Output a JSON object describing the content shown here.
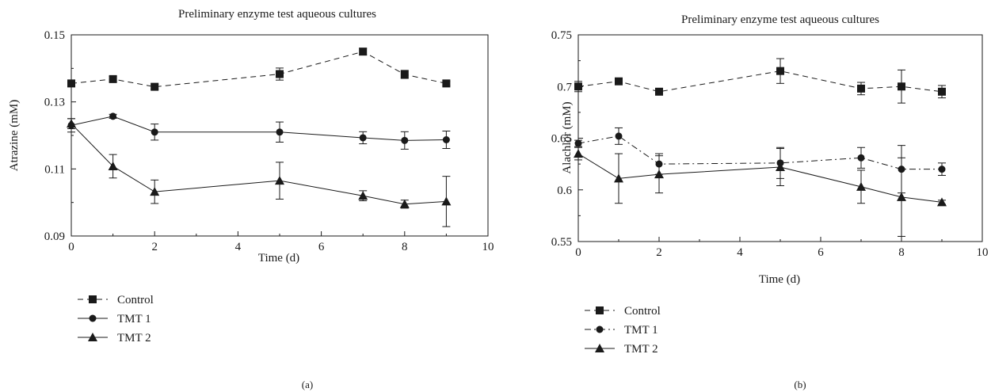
{
  "charts": [
    {
      "panel_label": "(a)",
      "chart_data": {
        "type": "line",
        "title": "Preliminary enzyme test aqueous cultures",
        "xlabel": "Time (d)",
        "ylabel": "Atrazine (mM)",
        "xlim": [
          0,
          10
        ],
        "ylim": [
          0.09,
          0.15
        ],
        "xticks": [
          0,
          2,
          4,
          6,
          8,
          10
        ],
        "yticks": [
          0.09,
          0.11,
          0.13,
          0.15
        ],
        "x_tick_labels": [
          "0",
          "2",
          "4",
          "6",
          "8",
          "10"
        ],
        "y_tick_labels": [
          "0.09",
          "0.11",
          "0.13",
          "0.15"
        ],
        "grid": false,
        "legend_placement": "below",
        "series": [
          {
            "name": "Control",
            "marker": "square",
            "dash": "dashed",
            "x": [
              0,
              1,
              2,
              5,
              7,
              8,
              9
            ],
            "y": [
              0.1355,
              0.1368,
              0.1345,
              0.1383,
              0.145,
              0.1382,
              0.1355
            ],
            "err": [
              0.0008,
              0.0008,
              0.0007,
              0.0018,
              0.001,
              0.0012,
              0.0006
            ]
          },
          {
            "name": "TMT 1",
            "marker": "circle",
            "dash": "solid",
            "x": [
              0,
              1,
              2,
              5,
              7,
              8,
              9
            ],
            "y": [
              0.123,
              0.1257,
              0.121,
              0.121,
              0.1193,
              0.1185,
              0.1187
            ],
            "err": [
              0.002,
              0.0006,
              0.0024,
              0.003,
              0.0018,
              0.0026,
              0.0026
            ]
          },
          {
            "name": "TMT 2",
            "marker": "triangle",
            "dash": "solid",
            "x": [
              0,
              1,
              2,
              5,
              7,
              8,
              9
            ],
            "y": [
              0.1235,
              0.1108,
              0.1032,
              0.1065,
              0.102,
              0.0995,
              0.1003
            ],
            "err": [
              0.0015,
              0.0035,
              0.0035,
              0.0055,
              0.0015,
              0.0012,
              0.0075
            ]
          }
        ]
      }
    },
    {
      "panel_label": "(b)",
      "chart_data": {
        "type": "line",
        "title": "Preliminary enzyme test aqueous cultures",
        "xlabel": "Time (d)",
        "ylabel": "Alachlor (mM)",
        "xlim": [
          0,
          10
        ],
        "ylim": [
          0.55,
          0.75
        ],
        "xticks": [
          0,
          2,
          4,
          6,
          8,
          10
        ],
        "yticks": [
          0.55,
          0.6,
          0.65,
          0.7,
          0.75
        ],
        "x_tick_labels": [
          "0",
          "2",
          "4",
          "6",
          "8",
          "10"
        ],
        "y_tick_labels": [
          "0.55",
          "0.6",
          "0.65",
          "0.7",
          "0.75"
        ],
        "grid": false,
        "legend_placement": "below",
        "series": [
          {
            "name": "Control",
            "marker": "square",
            "dash": "dashed",
            "x": [
              0,
              1,
              2,
              5,
              7,
              8,
              9
            ],
            "y": [
              0.7,
              0.705,
              0.695,
              0.715,
              0.698,
              0.7,
              0.695
            ],
            "err": [
              0.005,
              0.003,
              0.003,
              0.012,
              0.006,
              0.016,
              0.006
            ]
          },
          {
            "name": "TMT 1",
            "marker": "circle",
            "dash": "dashdot",
            "x": [
              0,
              1,
              2,
              5,
              7,
              8,
              9
            ],
            "y": [
              0.645,
              0.652,
              0.625,
              0.626,
              0.631,
              0.62,
              0.62
            ],
            "err": [
              0.003,
              0.008,
              0.01,
              0.015,
              0.01,
              0.023,
              0.006
            ]
          },
          {
            "name": "TMT 2",
            "marker": "triangle",
            "dash": "solid",
            "x": [
              0,
              1,
              2,
              5,
              7,
              8,
              9
            ],
            "y": [
              0.635,
              0.611,
              0.615,
              0.622,
              0.603,
              0.593,
              0.588
            ],
            "err": [
              0.006,
              0.024,
              0.018,
              0.018,
              0.016,
              0.038,
              0.002
            ]
          }
        ]
      }
    }
  ]
}
